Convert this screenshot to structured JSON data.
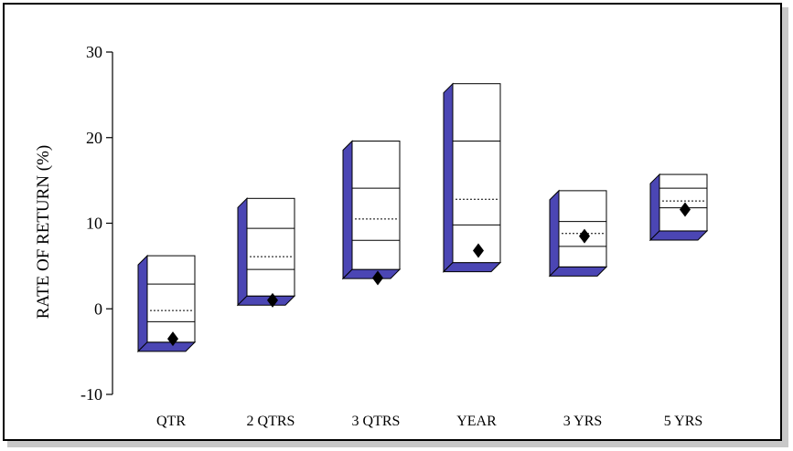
{
  "chart_data": {
    "type": "box",
    "ylabel": "RATE OF RETURN  (%)",
    "ylim": [
      -10,
      30
    ],
    "yticks": [
      -10,
      0,
      10,
      20,
      30
    ],
    "grid": false,
    "legend": "none",
    "colors": {
      "depth": "#4b46b4",
      "box_fill": "#ffffff",
      "marker": "#000000"
    },
    "categories": [
      "QTR",
      "2 QTRS",
      "3 QTRS",
      "YEAR",
      "3 YRS",
      "5 YRS"
    ],
    "series": [
      {
        "category": "QTR",
        "high": 6.2,
        "q3": 2.9,
        "median": -0.2,
        "q1": -1.5,
        "low": -3.9,
        "value": -3.5
      },
      {
        "category": "2 QTRS",
        "high": 12.9,
        "q3": 9.4,
        "median": 6.1,
        "q1": 4.6,
        "low": 1.5,
        "value": 1.0
      },
      {
        "category": "3 QTRS",
        "high": 19.6,
        "q3": 14.1,
        "median": 10.5,
        "q1": 8.0,
        "low": 4.6,
        "value": 3.6
      },
      {
        "category": "YEAR",
        "high": 26.3,
        "q3": 19.6,
        "median": 12.8,
        "q1": 9.8,
        "low": 5.4,
        "value": 6.8
      },
      {
        "category": "3 YRS",
        "high": 13.8,
        "q3": 10.2,
        "median": 8.8,
        "q1": 7.3,
        "low": 4.9,
        "value": 8.5
      },
      {
        "category": "5 YRS",
        "high": 15.7,
        "q3": 14.1,
        "median": 12.6,
        "q1": 11.8,
        "low": 9.1,
        "value": 11.6
      }
    ]
  }
}
